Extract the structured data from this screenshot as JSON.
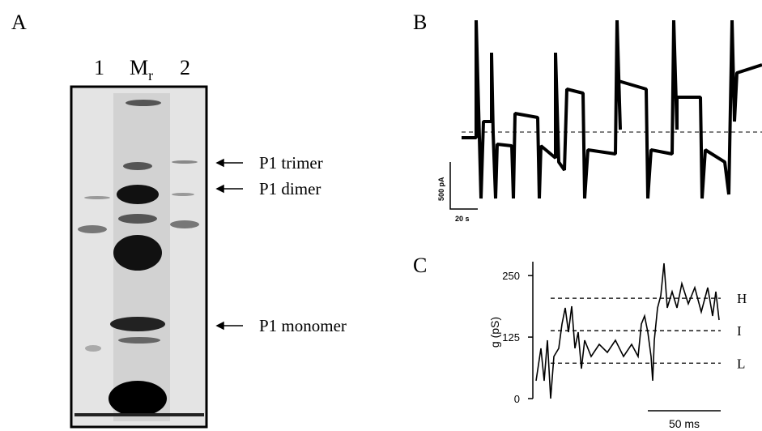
{
  "panels": {
    "a": {
      "label": "A",
      "lanes": [
        "1",
        {
          "main": "M",
          "sub": "r"
        },
        "2"
      ],
      "bands": [
        "P1 trimer",
        "P1 dimer",
        "P1 monomer"
      ]
    },
    "b": {
      "label": "B",
      "scale_y": "500 pA",
      "scale_x": "20 s"
    },
    "c": {
      "label": "C",
      "y_label": "g (pS)",
      "ylim": [
        0,
        275
      ],
      "yticks": [
        0,
        125,
        250
      ],
      "levels": [
        {
          "name": "H",
          "value": 204
        },
        {
          "name": "I",
          "value": 138
        },
        {
          "name": "L",
          "value": 72
        }
      ],
      "scale_x": "50 ms"
    }
  }
}
